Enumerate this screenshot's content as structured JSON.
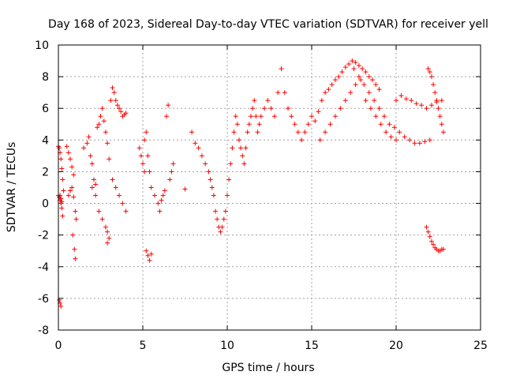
{
  "chart_data": {
    "type": "scatter",
    "title": "Day 168 of 2023, Sidereal Day-to-day VTEC variation (SDTVAR) for receiver yell",
    "xlabel": "GPS time / hours",
    "ylabel": "SDTVAR / TECUs",
    "xlim": [
      0,
      25
    ],
    "ylim": [
      -8,
      10
    ],
    "xticks": [
      0,
      5,
      10,
      15,
      20,
      25
    ],
    "yticks": [
      -8,
      -6,
      -4,
      -2,
      0,
      2,
      4,
      6,
      8,
      10
    ],
    "grid": true,
    "marker": "+",
    "color": "#ff0000",
    "series": [
      {
        "name": "SDTVAR",
        "x": [
          0.0,
          0.05,
          0.1,
          0.15,
          0.2,
          0.25,
          0.3,
          0.1,
          0.15,
          0.2,
          0.05,
          0.1,
          0.15,
          0.0,
          0.05,
          0.1,
          0.15,
          0.2,
          0.25,
          0.5,
          0.6,
          0.7,
          0.8,
          0.9,
          0.6,
          0.7,
          0.8,
          0.9,
          1.0,
          1.05,
          0.85,
          0.95,
          1.0,
          1.5,
          1.7,
          1.8,
          1.9,
          2.0,
          2.1,
          2.2,
          2.3,
          2.4,
          2.5,
          2.6,
          2.7,
          2.8,
          2.9,
          3.0,
          2.0,
          2.2,
          2.4,
          2.6,
          2.8,
          3.0,
          3.1,
          3.2,
          3.3,
          3.4,
          3.5,
          3.6,
          3.7,
          3.8,
          3.9,
          4.0,
          3.2,
          3.4,
          3.6,
          3.8,
          4.0,
          2.9,
          2.9,
          4.8,
          4.9,
          5.0,
          5.1,
          5.2,
          5.3,
          5.4,
          5.5,
          5.1,
          5.2,
          5.3,
          5.4,
          5.5,
          5.7,
          5.9,
          6.0,
          6.1,
          6.2,
          6.3,
          6.4,
          6.5,
          6.6,
          6.7,
          6.8,
          7.5,
          7.9,
          8.1,
          8.3,
          8.5,
          8.7,
          8.9,
          9.0,
          9.1,
          9.2,
          9.3,
          9.4,
          9.5,
          9.6,
          9.7,
          9.8,
          9.9,
          10.0,
          10.1,
          10.2,
          10.3,
          10.4,
          10.5,
          10.6,
          10.7,
          10.8,
          10.9,
          11.0,
          11.1,
          11.2,
          11.3,
          11.4,
          11.5,
          11.6,
          11.7,
          11.8,
          11.9,
          12.0,
          12.2,
          12.4,
          12.6,
          12.8,
          13.0,
          13.2,
          13.4,
          13.6,
          13.8,
          14.0,
          14.2,
          14.4,
          14.6,
          14.8,
          15.0,
          15.2,
          15.4,
          15.6,
          15.8,
          16.0,
          16.2,
          16.4,
          16.6,
          16.8,
          17.0,
          17.2,
          17.4,
          17.6,
          17.8,
          18.0,
          18.2,
          18.4,
          18.6,
          18.8,
          19.0,
          15.5,
          15.8,
          16.1,
          16.4,
          16.7,
          17.0,
          17.3,
          17.6,
          17.9,
          18.2,
          18.5,
          18.8,
          19.1,
          19.4,
          19.7,
          20.0,
          17.5,
          17.8,
          18.1,
          18.4,
          18.7,
          19.0,
          19.3,
          19.6,
          19.9,
          20.2,
          20.5,
          20.8,
          21.1,
          21.4,
          21.7,
          22.0,
          20.0,
          20.3,
          20.6,
          20.9,
          21.2,
          21.5,
          21.8,
          22.1,
          22.4,
          22.7,
          21.9,
          22.0,
          22.1,
          22.2,
          22.3,
          22.4,
          22.5,
          22.6,
          22.7,
          22.8,
          21.8,
          21.9,
          22.0,
          22.1,
          22.2,
          22.3,
          22.4,
          22.5,
          22.6,
          22.7,
          22.8
        ],
        "y": [
          3.6,
          3.5,
          3.2,
          2.8,
          2.2,
          1.5,
          0.8,
          0.5,
          0.3,
          0.1,
          -6.1,
          -6.3,
          -6.5,
          0.5,
          0.4,
          0.2,
          0.0,
          -0.3,
          -0.8,
          3.6,
          3.2,
          2.8,
          2.3,
          1.8,
          0.5,
          0.8,
          1.0,
          0.4,
          -0.5,
          -1.0,
          -2.0,
          -2.9,
          -3.5,
          3.5,
          3.8,
          4.2,
          3.0,
          2.5,
          1.5,
          1.2,
          4.8,
          5.0,
          5.5,
          6.0,
          5.2,
          4.5,
          3.8,
          2.8,
          1.0,
          0.5,
          -0.5,
          -1.0,
          -1.5,
          -2.2,
          6.5,
          7.3,
          7.0,
          6.5,
          6.2,
          6.0,
          5.8,
          5.5,
          5.6,
          5.7,
          1.5,
          1.0,
          0.5,
          0.0,
          -0.5,
          -1.8,
          -2.5,
          3.5,
          3.0,
          2.5,
          2.0,
          -3.0,
          -3.3,
          -3.6,
          -3.2,
          4.0,
          4.5,
          3.0,
          2.0,
          1.0,
          0.5,
          0.0,
          -0.5,
          0.2,
          0.5,
          0.8,
          5.5,
          6.2,
          1.5,
          2.0,
          2.5,
          0.9,
          4.5,
          3.8,
          3.5,
          3.0,
          2.5,
          2.0,
          1.5,
          1.0,
          0.5,
          -0.5,
          -1.0,
          -1.5,
          -1.8,
          -1.5,
          -1.0,
          -0.5,
          0.5,
          1.5,
          2.5,
          3.5,
          4.5,
          5.5,
          5.0,
          4.0,
          3.5,
          3.0,
          2.5,
          3.5,
          4.5,
          5.0,
          5.5,
          6.0,
          6.5,
          5.5,
          4.5,
          5.0,
          5.5,
          6.0,
          6.5,
          6.0,
          5.5,
          7.0,
          8.5,
          7.0,
          6.0,
          5.5,
          5.0,
          4.5,
          4.0,
          4.5,
          5.0,
          5.5,
          5.2,
          5.8,
          6.5,
          7.0,
          7.2,
          7.5,
          7.8,
          8.0,
          8.3,
          8.6,
          8.8,
          9.0,
          8.9,
          8.7,
          8.5,
          8.3,
          8.0,
          7.8,
          7.5,
          7.2,
          4.0,
          4.5,
          5.0,
          5.5,
          6.0,
          6.5,
          7.0,
          7.5,
          7.8,
          6.5,
          6.0,
          5.5,
          5.0,
          4.5,
          4.2,
          4.0,
          8.5,
          8.0,
          7.5,
          7.0,
          6.5,
          6.0,
          5.5,
          5.0,
          4.8,
          4.5,
          4.2,
          4.0,
          3.8,
          3.8,
          3.9,
          4.0,
          6.5,
          6.8,
          6.6,
          6.5,
          6.3,
          6.2,
          6.0,
          6.2,
          6.4,
          6.5,
          8.5,
          8.3,
          8.0,
          7.5,
          7.0,
          6.5,
          6.0,
          5.5,
          5.0,
          4.5,
          -1.5,
          -1.8,
          -2.1,
          -2.4,
          -2.6,
          -2.8,
          -2.9,
          -3.0,
          -3.0,
          -2.9,
          -2.9
        ]
      }
    ]
  }
}
